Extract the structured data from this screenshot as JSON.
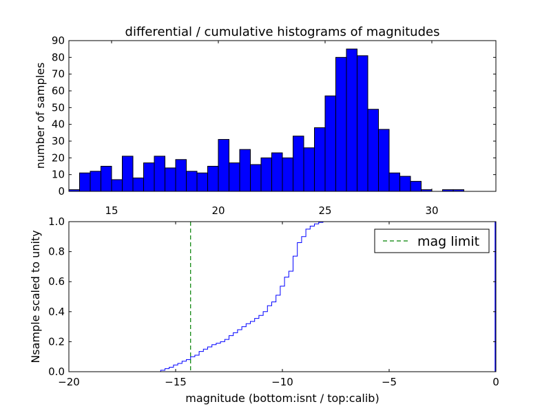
{
  "chart_data": [
    {
      "type": "bar",
      "title": "differential / cumulative histograms of magnitudes",
      "ylabel": "number of samples",
      "xlim": [
        13.0,
        33.0
      ],
      "ylim": [
        0,
        90
      ],
      "x_ticks": [
        15,
        20,
        25,
        30
      ],
      "y_ticks": [
        0,
        10,
        20,
        30,
        40,
        50,
        60,
        70,
        80,
        90
      ],
      "bin_width": 0.5,
      "bin_starts": [
        13.0,
        13.5,
        14.0,
        14.5,
        15.0,
        15.5,
        16.0,
        16.5,
        17.0,
        17.5,
        18.0,
        18.5,
        19.0,
        19.5,
        20.0,
        20.5,
        21.0,
        21.5,
        22.0,
        22.5,
        23.0,
        23.5,
        24.0,
        24.5,
        25.0,
        25.5,
        26.0,
        26.5,
        27.0,
        27.5,
        28.0,
        28.5,
        29.0,
        29.5,
        30.0,
        30.5,
        31.0,
        31.5
      ],
      "values": [
        1,
        11,
        12,
        15,
        7,
        21,
        8,
        17,
        21,
        14,
        19,
        12,
        11,
        15,
        31,
        17,
        25,
        16,
        20,
        23,
        20,
        33,
        26,
        38,
        57,
        80,
        85,
        81,
        49,
        37,
        11,
        9,
        6,
        1,
        0,
        1,
        1,
        0
      ],
      "color": "#0000ff"
    },
    {
      "type": "line",
      "ylabel": "Nsample scaled to unity",
      "xlabel": "magnitude (bottom:isnt / top:calib)",
      "xlim": [
        -20,
        0
      ],
      "ylim": [
        0.0,
        1.0
      ],
      "x_ticks": [
        -20,
        -15,
        -10,
        -5,
        0
      ],
      "x_tick_labels": [
        "−20",
        "−15",
        "−10",
        "−5",
        "0"
      ],
      "y_ticks": [
        0.0,
        0.2,
        0.4,
        0.6,
        0.8,
        1.0
      ],
      "y_tick_labels": [
        "0.0",
        "0.2",
        "0.4",
        "0.6",
        "0.8",
        "1.0"
      ],
      "series": [
        {
          "name": "cumulative",
          "color": "#0000ff",
          "drawstyle": "steps",
          "x": [
            -20.0,
            -15.9,
            -15.7,
            -15.5,
            -15.3,
            -15.1,
            -14.9,
            -14.7,
            -14.5,
            -14.3,
            -14.1,
            -13.9,
            -13.7,
            -13.5,
            -13.3,
            -13.1,
            -12.9,
            -12.7,
            -12.5,
            -12.3,
            -12.1,
            -11.9,
            -11.7,
            -11.5,
            -11.3,
            -11.1,
            -10.9,
            -10.7,
            -10.5,
            -10.3,
            -10.1,
            -9.9,
            -9.7,
            -9.5,
            -9.3,
            -9.1,
            -8.9,
            -8.7,
            -8.5,
            -8.3,
            -8.1,
            -7.9,
            0.0
          ],
          "y": [
            0.0,
            0.0,
            0.01,
            0.02,
            0.03,
            0.045,
            0.055,
            0.07,
            0.08,
            0.1,
            0.11,
            0.135,
            0.15,
            0.165,
            0.18,
            0.19,
            0.2,
            0.215,
            0.24,
            0.26,
            0.28,
            0.3,
            0.32,
            0.335,
            0.355,
            0.375,
            0.4,
            0.44,
            0.465,
            0.51,
            0.57,
            0.63,
            0.67,
            0.77,
            0.86,
            0.9,
            0.95,
            0.97,
            0.985,
            0.995,
            1.0,
            1.0,
            1.0
          ]
        },
        {
          "name": "mag limit",
          "color": "#008000",
          "linestyle": "dashed",
          "vline_x": -14.3
        }
      ],
      "legend": {
        "placement": "top-right",
        "entries": [
          "mag limit"
        ]
      }
    }
  ]
}
